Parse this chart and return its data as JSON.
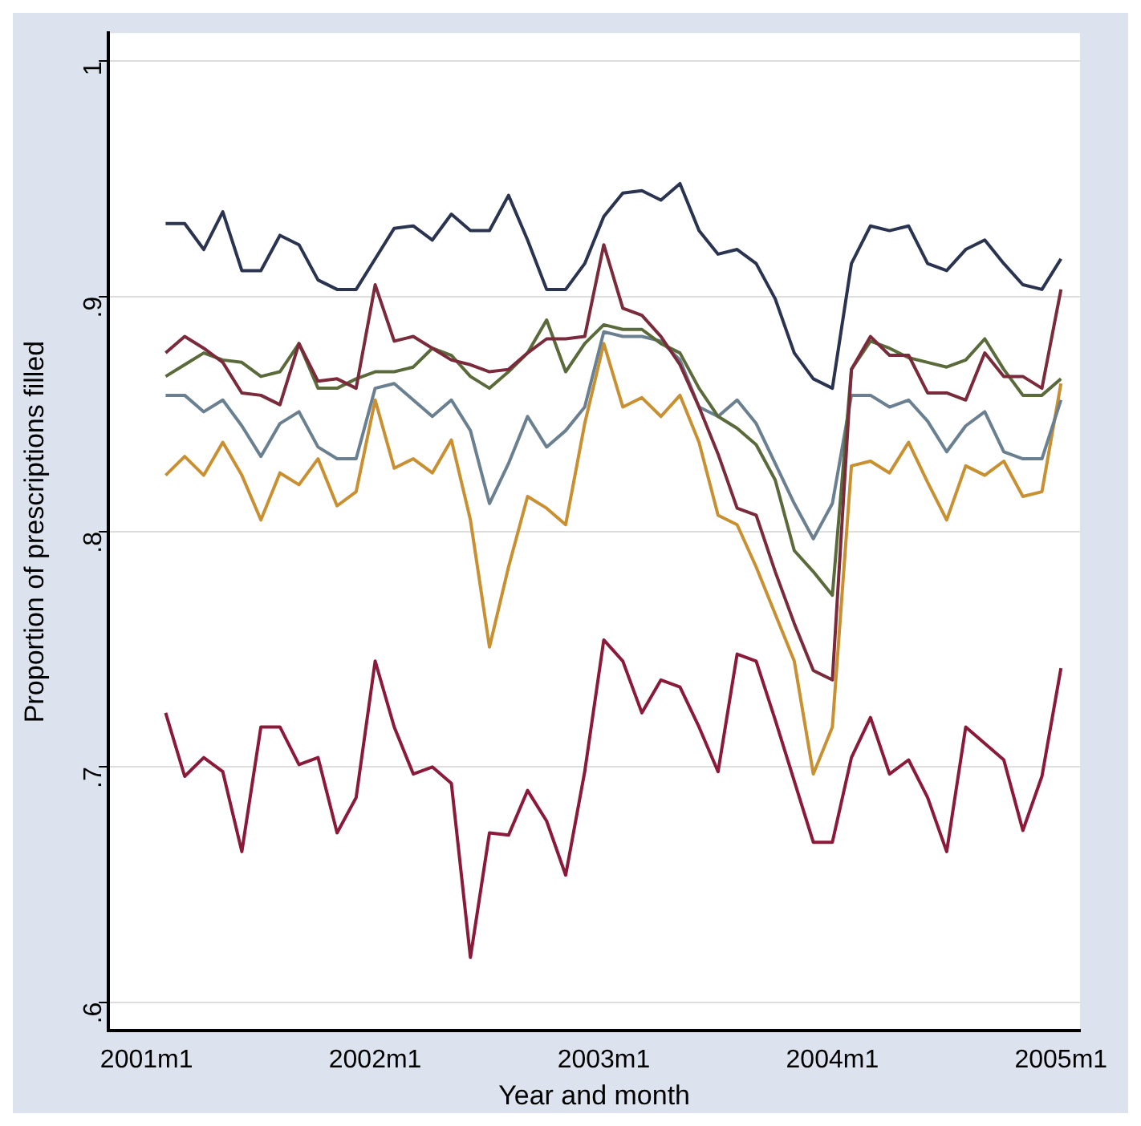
{
  "chart_data": {
    "type": "line",
    "xlabel": "Year and month",
    "ylabel": "Proportion of prescriptions filled",
    "x": [
      "2001-02",
      "2001-03",
      "2001-04",
      "2001-05",
      "2001-06",
      "2001-07",
      "2001-08",
      "2001-09",
      "2001-10",
      "2001-11",
      "2001-12",
      "2002-01",
      "2002-02",
      "2002-03",
      "2002-04",
      "2002-05",
      "2002-06",
      "2002-07",
      "2002-08",
      "2002-09",
      "2002-10",
      "2002-11",
      "2002-12",
      "2003-01",
      "2003-02",
      "2003-03",
      "2003-04",
      "2003-05",
      "2003-06",
      "2003-07",
      "2003-08",
      "2003-09",
      "2003-10",
      "2003-11",
      "2003-12",
      "2004-01",
      "2004-02",
      "2004-03",
      "2004-04",
      "2004-05",
      "2004-06",
      "2004-07",
      "2004-08",
      "2004-09",
      "2004-10",
      "2004-11",
      "2004-12",
      "2005-01"
    ],
    "series": [
      {
        "color": "#2a3450",
        "values": [
          0.931,
          0.931,
          0.92,
          0.936,
          0.911,
          0.911,
          0.926,
          0.922,
          0.907,
          0.903,
          0.903,
          0.916,
          0.929,
          0.93,
          0.924,
          0.935,
          0.928,
          0.928,
          0.943,
          0.924,
          0.903,
          0.903,
          0.914,
          0.934,
          0.944,
          0.945,
          0.941,
          0.948,
          0.928,
          0.918,
          0.92,
          0.914,
          0.899,
          0.876,
          0.865,
          0.861,
          0.914,
          0.93,
          0.928,
          0.93,
          0.914,
          0.911,
          0.92,
          0.924,
          0.914,
          0.905,
          0.903,
          0.916
        ]
      },
      {
        "color": "#7a2a3a",
        "values": [
          0.876,
          0.883,
          0.878,
          0.872,
          0.859,
          0.858,
          0.854,
          0.88,
          0.864,
          0.865,
          0.861,
          0.905,
          0.881,
          0.883,
          0.878,
          0.873,
          0.871,
          0.868,
          0.869,
          0.876,
          0.882,
          0.882,
          0.883,
          0.922,
          0.895,
          0.892,
          0.883,
          0.871,
          0.853,
          0.833,
          0.81,
          0.807,
          0.783,
          0.761,
          0.741,
          0.737,
          0.869,
          0.883,
          0.875,
          0.875,
          0.859,
          0.859,
          0.856,
          0.876,
          0.866,
          0.866,
          0.861,
          0.903
        ]
      },
      {
        "color": "#5a6a3a",
        "values": [
          0.866,
          0.871,
          0.876,
          0.873,
          0.872,
          0.866,
          0.868,
          0.88,
          0.861,
          0.861,
          0.865,
          0.868,
          0.868,
          0.87,
          0.878,
          0.875,
          0.866,
          0.861,
          0.868,
          0.876,
          0.89,
          0.868,
          0.88,
          0.888,
          0.886,
          0.886,
          0.88,
          0.876,
          0.861,
          0.849,
          0.844,
          0.837,
          0.822,
          0.792,
          0.783,
          0.773,
          0.869,
          0.881,
          0.878,
          0.874,
          0.872,
          0.87,
          0.873,
          0.882,
          0.869,
          0.858,
          0.858,
          0.865
        ]
      },
      {
        "color": "#6a8090",
        "values": [
          0.858,
          0.858,
          0.851,
          0.856,
          0.845,
          0.832,
          0.846,
          0.851,
          0.836,
          0.831,
          0.831,
          0.861,
          0.863,
          0.856,
          0.849,
          0.856,
          0.843,
          0.812,
          0.829,
          0.849,
          0.836,
          0.843,
          0.853,
          0.885,
          0.883,
          0.883,
          0.881,
          0.873,
          0.853,
          0.849,
          0.856,
          0.846,
          0.829,
          0.812,
          0.797,
          0.812,
          0.858,
          0.858,
          0.853,
          0.856,
          0.847,
          0.834,
          0.845,
          0.851,
          0.834,
          0.831,
          0.831,
          0.856
        ]
      },
      {
        "color": "#c89030",
        "values": [
          0.824,
          0.832,
          0.824,
          0.838,
          0.824,
          0.805,
          0.825,
          0.82,
          0.831,
          0.811,
          0.817,
          0.856,
          0.827,
          0.831,
          0.825,
          0.839,
          0.805,
          0.751,
          0.785,
          0.815,
          0.81,
          0.803,
          0.846,
          0.88,
          0.853,
          0.857,
          0.849,
          0.858,
          0.838,
          0.807,
          0.803,
          0.785,
          0.765,
          0.745,
          0.697,
          0.717,
          0.828,
          0.83,
          0.825,
          0.838,
          0.821,
          0.805,
          0.828,
          0.824,
          0.83,
          0.815,
          0.817,
          0.863
        ]
      },
      {
        "color": "#8b1a3a",
        "values": [
          0.723,
          0.696,
          0.704,
          0.698,
          0.664,
          0.717,
          0.717,
          0.701,
          0.704,
          0.672,
          0.687,
          0.745,
          0.717,
          0.697,
          0.7,
          0.693,
          0.619,
          0.672,
          0.671,
          0.69,
          0.677,
          0.654,
          0.698,
          0.754,
          0.745,
          0.723,
          0.737,
          0.734,
          0.717,
          0.698,
          0.748,
          0.745,
          0.72,
          0.694,
          0.668,
          0.668,
          0.704,
          0.721,
          0.697,
          0.703,
          0.687,
          0.664,
          0.717,
          0.71,
          0.703,
          0.673,
          0.696,
          0.742
        ]
      }
    ],
    "xlim": [
      "2000-11",
      "2005-02"
    ],
    "ylim": [
      0.588,
      1.012
    ],
    "xticks": [
      {
        "value": "2001-01",
        "label": "2001m1"
      },
      {
        "value": "2002-01",
        "label": "2002m1"
      },
      {
        "value": "2003-01",
        "label": "2003m1"
      },
      {
        "value": "2004-01",
        "label": "2004m1"
      },
      {
        "value": "2005-01",
        "label": "2005m1"
      }
    ],
    "yticks": [
      {
        "value": 0.6,
        "label": ".6"
      },
      {
        "value": 0.7,
        "label": ".7"
      },
      {
        "value": 0.8,
        "label": ".8"
      },
      {
        "value": 0.9,
        "label": ".9"
      },
      1
    ],
    "grid": "y",
    "legend": false,
    "marker": "none",
    "line_style": "solid"
  }
}
